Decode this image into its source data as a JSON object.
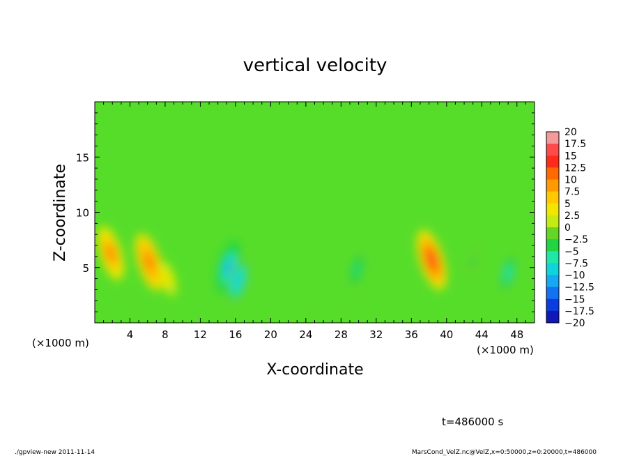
{
  "chart_data": {
    "type": "heatmap",
    "title": "vertical velocity",
    "xlabel": "X-coordinate",
    "ylabel": "Z-coordinate",
    "x_unit_label": "(×1000 m)",
    "y_unit_label": "(×1000 m)",
    "xlim": [
      0,
      50
    ],
    "ylim": [
      0,
      20
    ],
    "x_ticks": [
      "4",
      "8",
      "12",
      "16",
      "20",
      "24",
      "28",
      "32",
      "36",
      "40",
      "44",
      "48"
    ],
    "x_tick_values": [
      4,
      8,
      12,
      16,
      20,
      24,
      28,
      32,
      36,
      40,
      44,
      48
    ],
    "y_ticks": [
      "5",
      "10",
      "15"
    ],
    "y_tick_values": [
      5,
      10,
      15
    ],
    "colorbar": {
      "labels": [
        "20",
        "17.5",
        "15",
        "12.5",
        "10",
        "7.5",
        "5",
        "2.5",
        "0",
        "−2.5",
        "−5",
        "−7.5",
        "−10",
        "−12.5",
        "−15",
        "−17.5",
        "−20"
      ],
      "levels": [
        20,
        17.5,
        15,
        12.5,
        10,
        7.5,
        5,
        2.5,
        0,
        -2.5,
        -5,
        -7.5,
        -10,
        -12.5,
        -15,
        -17.5,
        -20
      ],
      "colors": [
        "#f49a9a",
        "#ff4a4a",
        "#ff2b1a",
        "#ff6a00",
        "#ff9b00",
        "#ffc800",
        "#f2e600",
        "#c4ec12",
        "#66d626",
        "#22d442",
        "#20e6a8",
        "#10d4dc",
        "#16a8f0",
        "#1272f0",
        "#0a3ce0",
        "#1018b8",
        "#5a1ea8"
      ]
    },
    "features": [
      {
        "x": 1.8,
        "z": 6.3,
        "peak": 11.0
      },
      {
        "x": 6.2,
        "z": 5.5,
        "peak": 12.0
      },
      {
        "x": 8.3,
        "z": 4.0,
        "peak": 5.0
      },
      {
        "x": 15.2,
        "z": 5.0,
        "peak": -10.5
      },
      {
        "x": 16.3,
        "z": 3.8,
        "peak": -9.5
      },
      {
        "x": 29.8,
        "z": 4.8,
        "peak": -6.0
      },
      {
        "x": 38.3,
        "z": 5.7,
        "peak": 13.0
      },
      {
        "x": 47.0,
        "z": 4.5,
        "peak": -7.0
      },
      {
        "x": 43.0,
        "z": 5.5,
        "peak": -3.5
      }
    ]
  },
  "annotation": {
    "time": "t=486000 s",
    "footer_left": "./gpview-new  2011-11-14",
    "footer_right": "MarsCond_VelZ.nc@VelZ,x=0:50000,z=0:20000,t=486000"
  }
}
